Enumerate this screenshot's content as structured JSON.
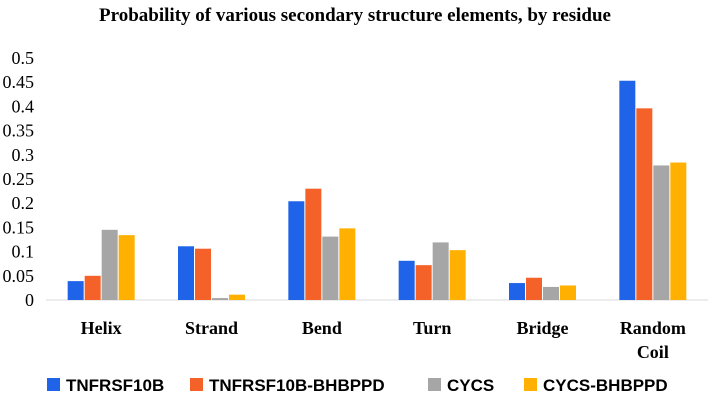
{
  "chart_data": {
    "type": "bar",
    "title": "Probability of various secondary structure elements, by residue",
    "categories": [
      [
        "Helix"
      ],
      [
        "Strand"
      ],
      [
        "Bend"
      ],
      [
        "Turn"
      ],
      [
        "Bridge"
      ],
      [
        "Random",
        "Coil"
      ]
    ],
    "series": [
      {
        "name": "TNFRSF10B",
        "color": "#1f63e8",
        "values": [
          0.039,
          0.111,
          0.204,
          0.081,
          0.035,
          0.453
        ]
      },
      {
        "name": "TNFRSF10B-BHBPPD",
        "color": "#f4622a",
        "values": [
          0.05,
          0.106,
          0.23,
          0.072,
          0.046,
          0.396
        ]
      },
      {
        "name": "CYCS",
        "color": "#a6a6a6",
        "values": [
          0.145,
          0.004,
          0.131,
          0.119,
          0.027,
          0.278
        ]
      },
      {
        "name": "CYCS-BHBPPD",
        "color": "#ffb000",
        "values": [
          0.134,
          0.011,
          0.148,
          0.103,
          0.03,
          0.284
        ]
      }
    ],
    "ylim": [
      0,
      0.5
    ],
    "yticks": [
      "0",
      "0.05",
      "0.1",
      "0.15",
      "0.2",
      "0.25",
      "0.3",
      "0.35",
      "0.4",
      "0.45",
      "0.5"
    ],
    "ytick_values": [
      0,
      0.05,
      0.1,
      0.15,
      0.2,
      0.25,
      0.3,
      0.35,
      0.4,
      0.45,
      0.5
    ],
    "xlabel": "",
    "ylabel": "",
    "grid": false,
    "legend_position": "bottom"
  }
}
